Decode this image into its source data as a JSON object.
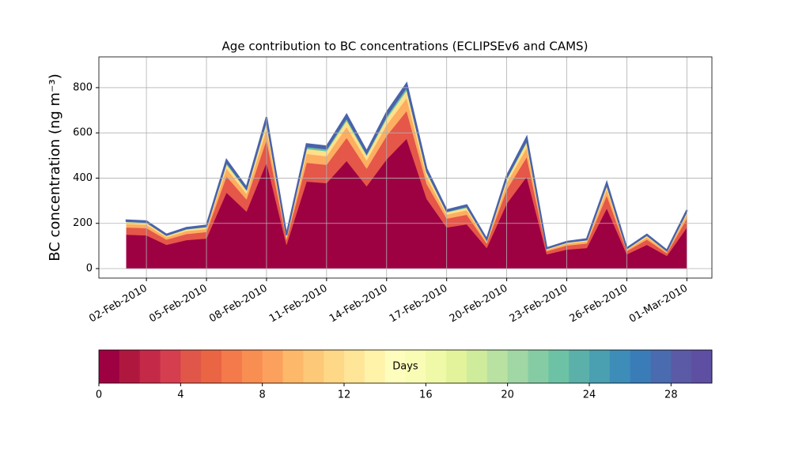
{
  "chart_data": {
    "type": "stacked_area",
    "title": "Age contribution to BC concentrations (ECLIPSEv6 and CAMS)",
    "ylabel": "BC concentration (ng m⁻³)",
    "x": [
      "2010-02-01",
      "2010-02-02",
      "2010-02-03",
      "2010-02-04",
      "2010-02-05",
      "2010-02-06",
      "2010-02-07",
      "2010-02-08",
      "2010-02-09",
      "2010-02-10",
      "2010-02-11",
      "2010-02-12",
      "2010-02-13",
      "2010-02-14",
      "2010-02-15",
      "2010-02-16",
      "2010-02-17",
      "2010-02-18",
      "2010-02-19",
      "2010-02-20",
      "2010-02-21",
      "2010-02-22",
      "2010-02-23",
      "2010-02-24",
      "2010-02-25",
      "2010-02-26",
      "2010-02-27",
      "2010-02-28",
      "2010-03-01"
    ],
    "series": [
      {
        "color": "#9e0142",
        "values": [
          150,
          147,
          105,
          126,
          133,
          336,
          252,
          469,
          105,
          385,
          378,
          476,
          364,
          483,
          574,
          308,
          182,
          196,
          91,
          287,
          406,
          63,
          84,
          91,
          266,
          63,
          105,
          56,
          182
        ]
      },
      {
        "color": "#e55749",
        "values": [
          32,
          32,
          23,
          27,
          29,
          72,
          54,
          101,
          23,
          83,
          81,
          102,
          78,
          104,
          123,
          66,
          39,
          42,
          20,
          62,
          87,
          14,
          18,
          20,
          57,
          14,
          23,
          12,
          39
        ]
      },
      {
        "color": "#fdae61",
        "values": [
          15,
          15,
          11,
          13,
          13,
          34,
          25,
          47,
          11,
          39,
          38,
          48,
          36,
          48,
          57,
          31,
          18,
          20,
          9,
          29,
          41,
          6,
          8,
          9,
          27,
          6,
          11,
          6,
          18
        ]
      },
      {
        "color": "#fee08b",
        "values": [
          9,
          8,
          6,
          7,
          8,
          19,
          14,
          27,
          6,
          22,
          22,
          27,
          21,
          28,
          33,
          18,
          10,
          11,
          5,
          16,
          23,
          4,
          5,
          5,
          15,
          4,
          6,
          3,
          10
        ]
      },
      {
        "color": "#66c2a5",
        "values": [
          4,
          4,
          3,
          4,
          4,
          10,
          7,
          13,
          3,
          11,
          11,
          14,
          10,
          14,
          16,
          9,
          5,
          6,
          3,
          8,
          12,
          2,
          2,
          3,
          8,
          2,
          3,
          2,
          5
        ]
      },
      {
        "color": "#4a62aa",
        "values": [
          4,
          4,
          3,
          4,
          4,
          10,
          7,
          13,
          3,
          11,
          11,
          14,
          10,
          14,
          16,
          9,
          5,
          6,
          3,
          8,
          12,
          2,
          2,
          3,
          8,
          2,
          3,
          2,
          5
        ]
      }
    ],
    "xlim": [
      "2010-01-30T15:00:00Z",
      "2010-03-02T06:00:00Z"
    ],
    "xticks": [
      {
        "value": "2010-02-02",
        "label": "02-Feb-2010"
      },
      {
        "value": "2010-02-05",
        "label": "05-Feb-2010"
      },
      {
        "value": "2010-02-08",
        "label": "08-Feb-2010"
      },
      {
        "value": "2010-02-11",
        "label": "11-Feb-2010"
      },
      {
        "value": "2010-02-14",
        "label": "14-Feb-2010"
      },
      {
        "value": "2010-02-17",
        "label": "17-Feb-2010"
      },
      {
        "value": "2010-02-20",
        "label": "20-Feb-2010"
      },
      {
        "value": "2010-02-23",
        "label": "23-Feb-2010"
      },
      {
        "value": "2010-02-26",
        "label": "26-Feb-2010"
      },
      {
        "value": "2010-03-01",
        "label": "01-Mar-2010"
      }
    ],
    "ylim": [
      -42,
      936
    ],
    "yticks": [
      0,
      200,
      400,
      600,
      800
    ],
    "grid": true,
    "colorbar": {
      "label": "Days",
      "lim": [
        0,
        30
      ],
      "ticks": [
        0,
        4,
        8,
        12,
        16,
        20,
        24,
        28
      ],
      "colors": [
        "#9e0142",
        "#b0173f",
        "#c42a48",
        "#d53e4f",
        "#e05749",
        "#ea6543",
        "#f47a4c",
        "#f88e52",
        "#fba15d",
        "#fdb869",
        "#fdc877",
        "#fed787",
        "#fee597",
        "#fff2a9",
        "#fffdbe",
        "#f9fcb5",
        "#f0f9a8",
        "#e2f39b",
        "#cfeb9c",
        "#b8e1a2",
        "#a0d7a4",
        "#85cca4",
        "#6dc2a5",
        "#5bb0aa",
        "#4a9fb1",
        "#3d8db8",
        "#3a7cb8",
        "#4a6baf",
        "#5a5aa6",
        "#5e4fa2"
      ]
    }
  }
}
